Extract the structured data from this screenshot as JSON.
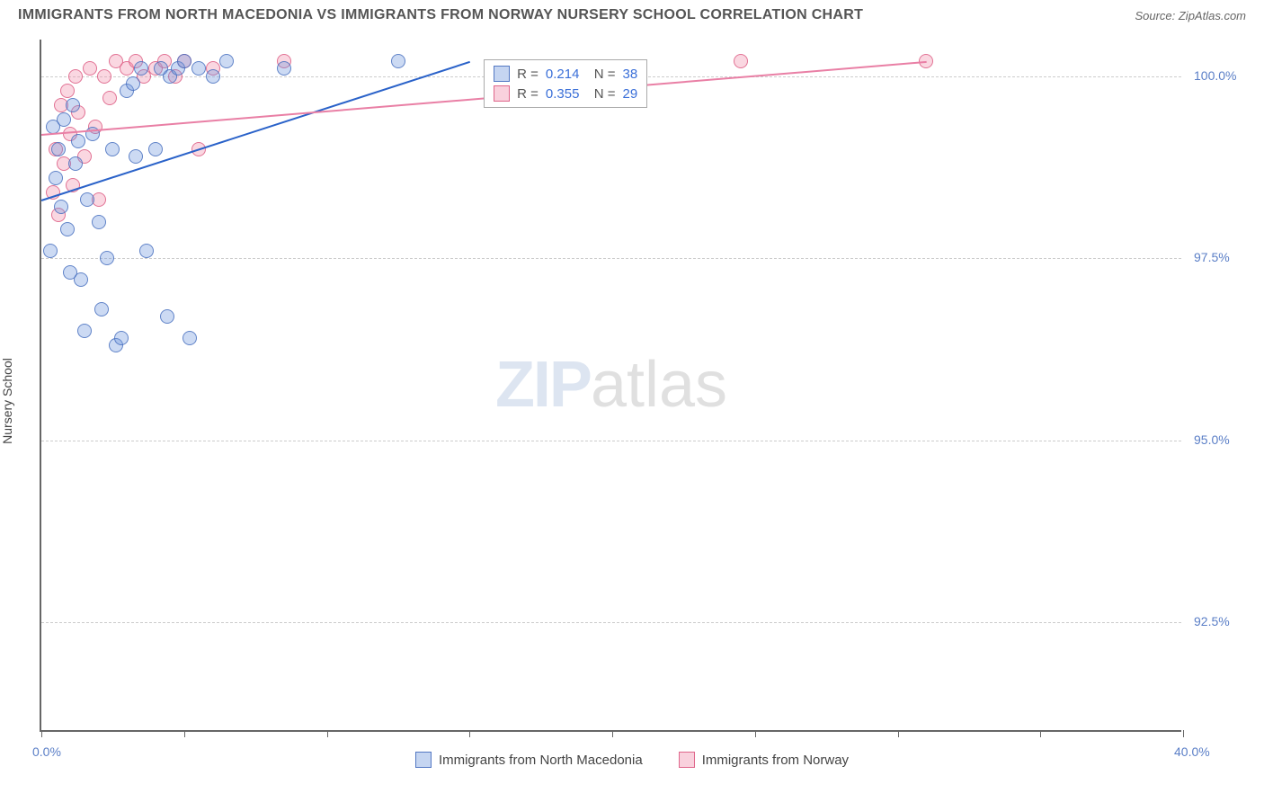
{
  "header": {
    "title": "IMMIGRANTS FROM NORTH MACEDONIA VS IMMIGRANTS FROM NORWAY NURSERY SCHOOL CORRELATION CHART",
    "source": "Source: ZipAtlas.com"
  },
  "chart": {
    "type": "scatter",
    "yaxis_label": "Nursery School",
    "watermark_zip": "ZIP",
    "watermark_atlas": "atlas",
    "xlim": [
      0,
      40
    ],
    "ylim": [
      91,
      100.5
    ],
    "x_ticks": [
      0,
      5,
      10,
      15,
      20,
      25,
      30,
      35,
      40
    ],
    "x_tick_labels": {
      "0": "0.0%",
      "40": "40.0%"
    },
    "y_ticks": [
      92.5,
      95.0,
      97.5,
      100.0
    ],
    "y_tick_labels": [
      "92.5%",
      "95.0%",
      "97.5%",
      "100.0%"
    ],
    "grid_color": "#cccccc",
    "colors": {
      "blue_fill": "rgba(110,150,220,0.35)",
      "blue_stroke": "rgba(70,110,190,0.8)",
      "pink_fill": "rgba(240,140,170,0.35)",
      "pink_stroke": "rgba(220,90,130,0.8)",
      "blue_line": "#2a62c9",
      "pink_line": "#e97fa5",
      "tick_label": "#5b7fc7"
    },
    "marker_radius": 8,
    "series_blue": {
      "label": "Immigrants from North Macedonia",
      "R": "0.214",
      "N": "38",
      "trend": {
        "x1": 0,
        "y1": 98.3,
        "x2": 15,
        "y2": 100.2
      },
      "points": [
        [
          0.3,
          97.6
        ],
        [
          0.4,
          99.3
        ],
        [
          0.5,
          98.6
        ],
        [
          0.6,
          99.0
        ],
        [
          0.7,
          98.2
        ],
        [
          0.8,
          99.4
        ],
        [
          0.9,
          97.9
        ],
        [
          1.0,
          97.3
        ],
        [
          1.1,
          99.6
        ],
        [
          1.2,
          98.8
        ],
        [
          1.3,
          99.1
        ],
        [
          1.4,
          97.2
        ],
        [
          1.5,
          96.5
        ],
        [
          1.6,
          98.3
        ],
        [
          1.8,
          99.2
        ],
        [
          2.0,
          98.0
        ],
        [
          2.1,
          96.8
        ],
        [
          2.3,
          97.5
        ],
        [
          2.5,
          99.0
        ],
        [
          2.6,
          96.3
        ],
        [
          2.8,
          96.4
        ],
        [
          3.0,
          99.8
        ],
        [
          3.2,
          99.9
        ],
        [
          3.3,
          98.9
        ],
        [
          3.5,
          100.1
        ],
        [
          3.7,
          97.6
        ],
        [
          4.0,
          99.0
        ],
        [
          4.2,
          100.1
        ],
        [
          4.4,
          96.7
        ],
        [
          4.5,
          100.0
        ],
        [
          4.8,
          100.1
        ],
        [
          5.0,
          100.2
        ],
        [
          5.2,
          96.4
        ],
        [
          5.5,
          100.1
        ],
        [
          6.0,
          100.0
        ],
        [
          6.5,
          100.2
        ],
        [
          8.5,
          100.1
        ],
        [
          12.5,
          100.2
        ]
      ]
    },
    "series_pink": {
      "label": "Immigrants from Norway",
      "R": "0.355",
      "N": "29",
      "trend": {
        "x1": 0,
        "y1": 99.2,
        "x2": 31,
        "y2": 100.2
      },
      "points": [
        [
          0.4,
          98.4
        ],
        [
          0.5,
          99.0
        ],
        [
          0.6,
          98.1
        ],
        [
          0.7,
          99.6
        ],
        [
          0.8,
          98.8
        ],
        [
          0.9,
          99.8
        ],
        [
          1.0,
          99.2
        ],
        [
          1.1,
          98.5
        ],
        [
          1.2,
          100.0
        ],
        [
          1.3,
          99.5
        ],
        [
          1.5,
          98.9
        ],
        [
          1.7,
          100.1
        ],
        [
          1.9,
          99.3
        ],
        [
          2.0,
          98.3
        ],
        [
          2.2,
          100.0
        ],
        [
          2.4,
          99.7
        ],
        [
          2.6,
          100.2
        ],
        [
          3.0,
          100.1
        ],
        [
          3.3,
          100.2
        ],
        [
          3.6,
          100.0
        ],
        [
          4.0,
          100.1
        ],
        [
          4.3,
          100.2
        ],
        [
          4.7,
          100.0
        ],
        [
          5.0,
          100.2
        ],
        [
          5.5,
          99.0
        ],
        [
          6.0,
          100.1
        ],
        [
          8.5,
          100.2
        ],
        [
          24.5,
          100.2
        ],
        [
          31.0,
          100.2
        ]
      ]
    }
  },
  "legend_stats": {
    "r_label": "R =",
    "n_label": "N ="
  },
  "bottom_legend": {
    "item1": "Immigrants from North Macedonia",
    "item2": "Immigrants from Norway"
  }
}
